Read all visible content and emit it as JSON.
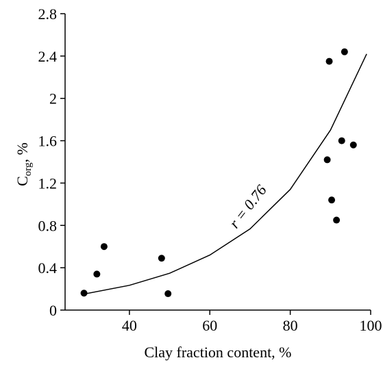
{
  "chart_data": {
    "type": "scatter",
    "xlabel": "Clay fraction content, %",
    "ylabel": {
      "main": "C",
      "sub": "org",
      "rest": ", %"
    },
    "annotation": "r = 0.76",
    "xlim": [
      24,
      100
    ],
    "xticks": [
      40,
      60,
      80,
      100
    ],
    "ylim": [
      0,
      2.8
    ],
    "yticks": [
      0,
      0.4,
      0.8,
      1.2,
      1.6,
      2,
      2.4,
      2.8
    ],
    "series": [
      {
        "kind": "points",
        "color": "#000000",
        "x": [
          28.7,
          31.9,
          33.7,
          48.0,
          49.6,
          89.2,
          89.7,
          90.3,
          91.5,
          92.8,
          93.5,
          95.7
        ],
        "values": [
          0.16,
          0.34,
          0.6,
          0.49,
          0.155,
          1.42,
          2.35,
          1.04,
          0.85,
          1.6,
          2.44,
          1.56
        ]
      },
      {
        "kind": "curve",
        "color": "#000000",
        "x": [
          28,
          40,
          50,
          60,
          70,
          80,
          90,
          99
        ],
        "values": [
          0.146,
          0.234,
          0.348,
          0.52,
          0.767,
          1.14,
          1.7,
          2.42
        ]
      }
    ]
  }
}
